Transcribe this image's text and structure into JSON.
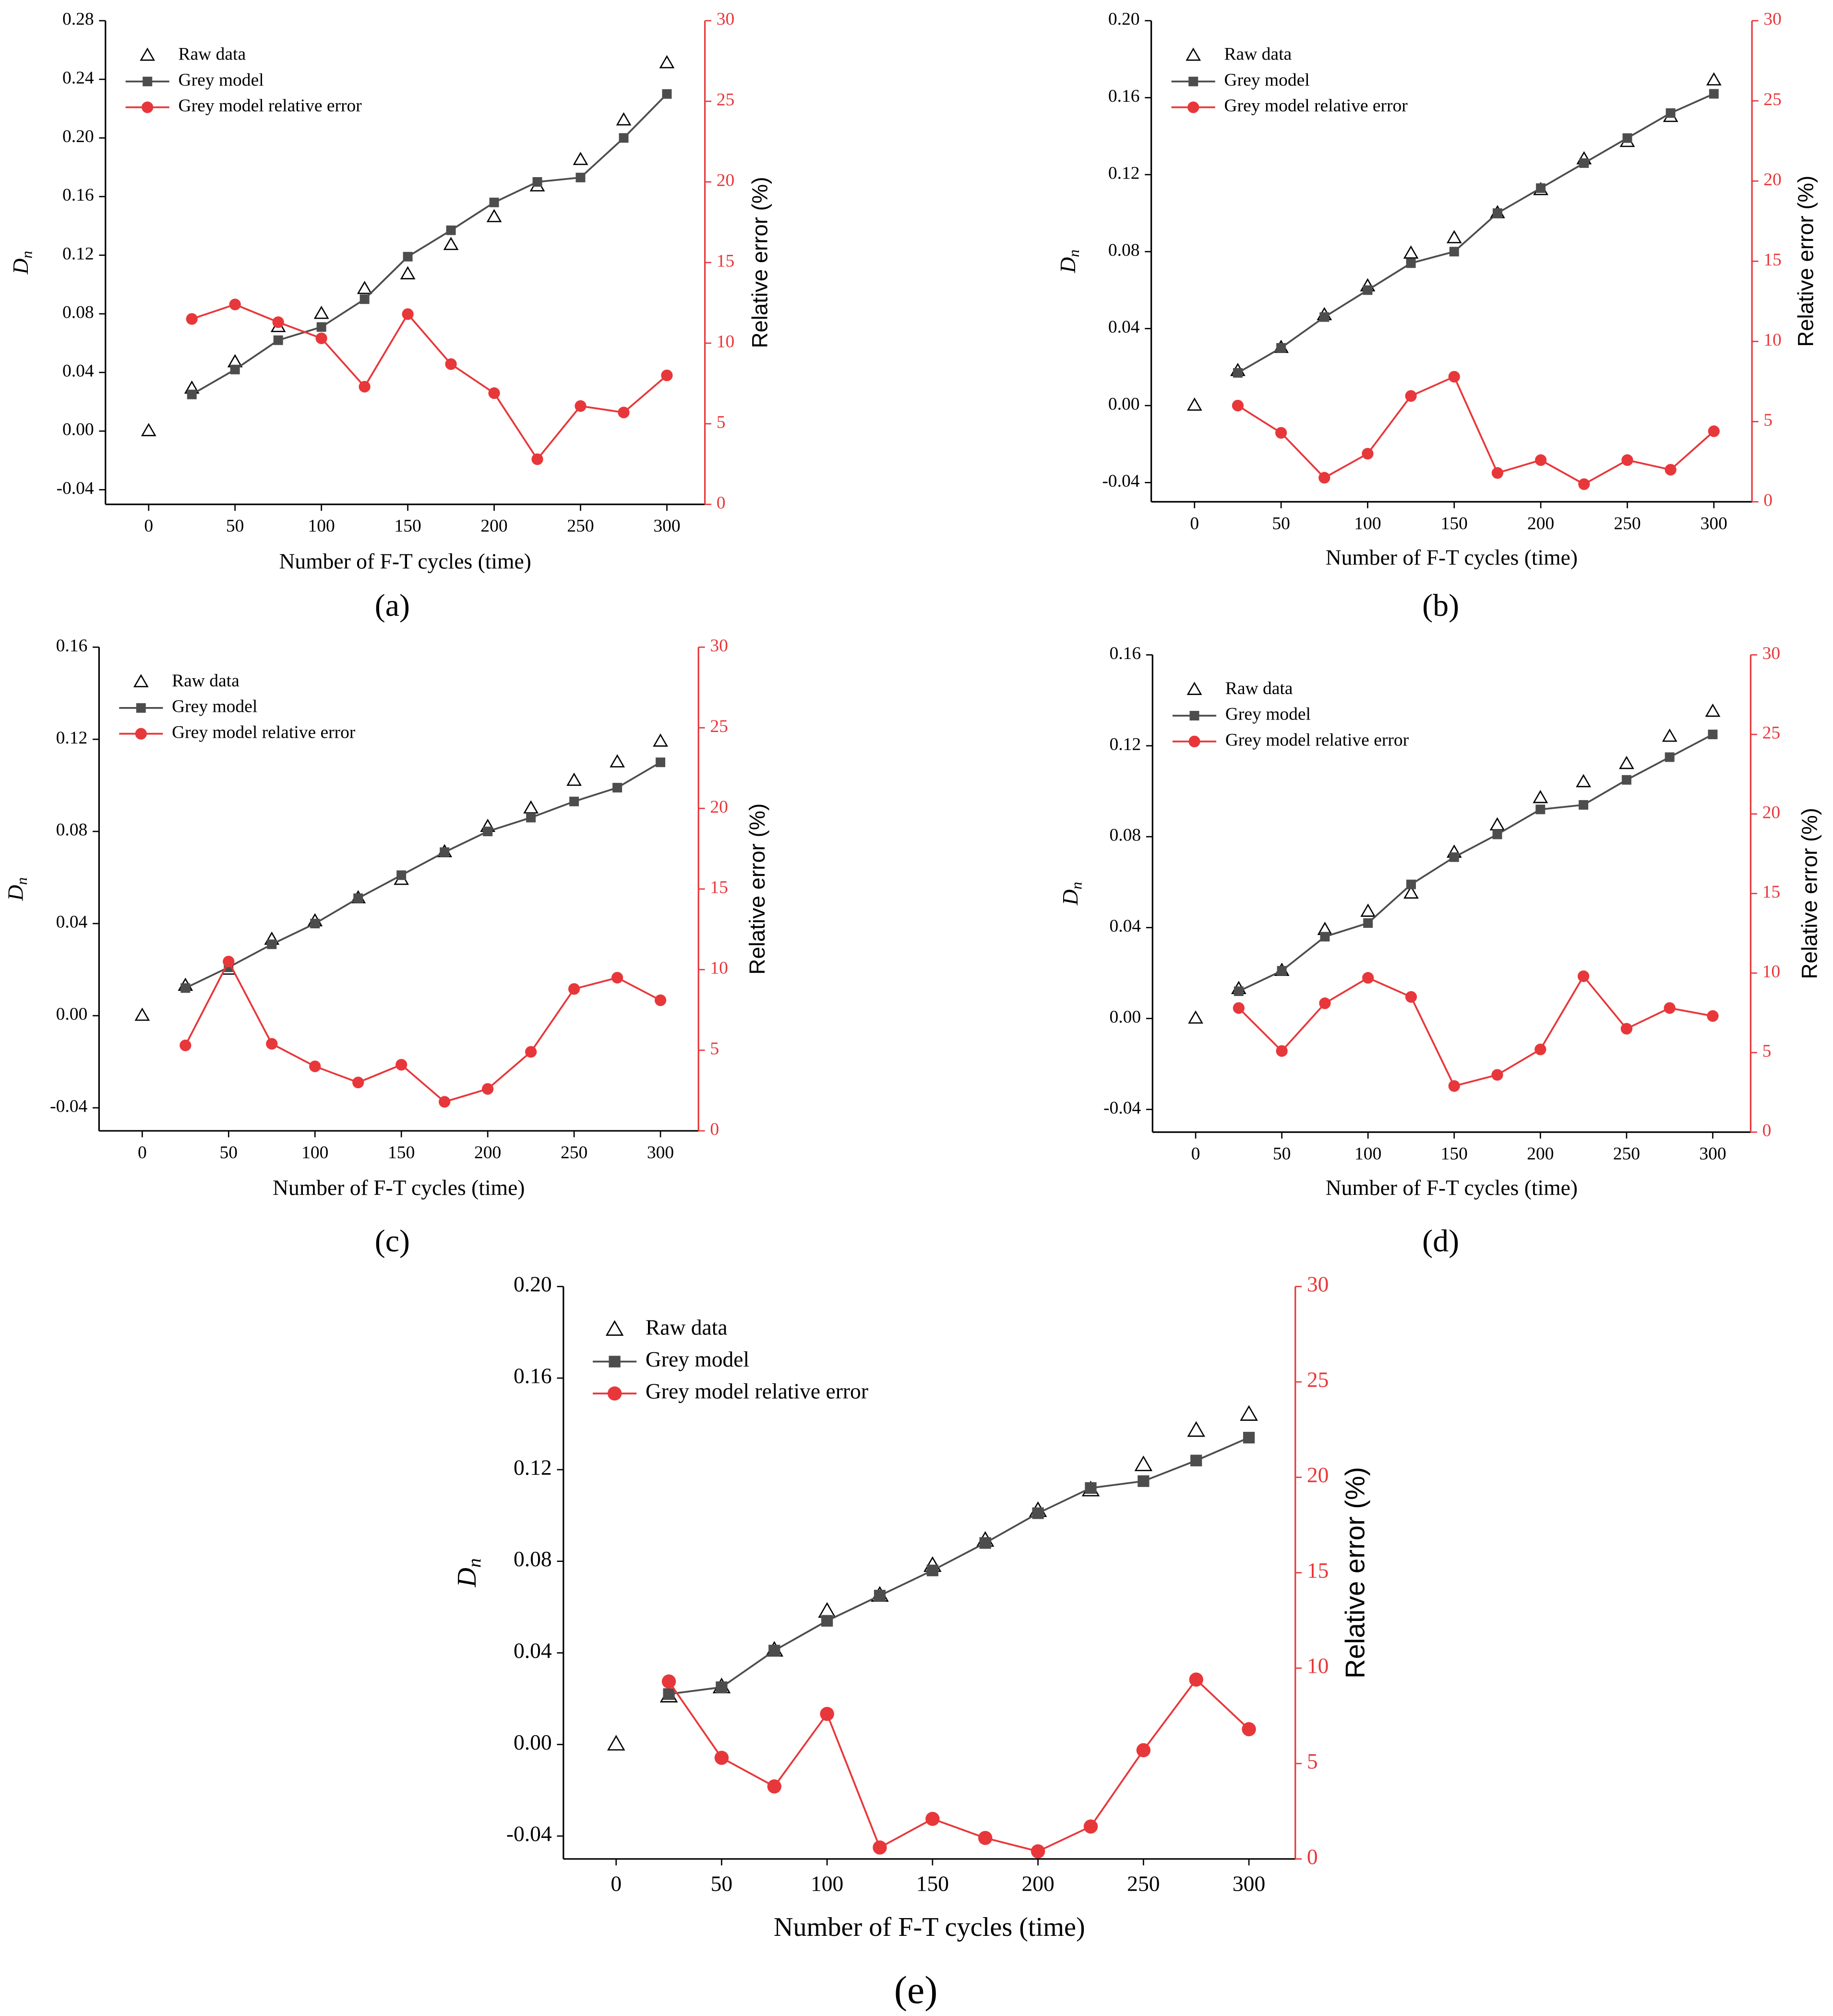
{
  "chart_data": [
    {
      "type": "line",
      "panel_label": "(a)",
      "xlabel": "Number of F-T cycles (time)",
      "ylabel": "D",
      "ylabel_subscript": "n",
      "y2label": "Relative error (%)",
      "x": [
        0,
        25,
        50,
        75,
        100,
        125,
        150,
        175,
        200,
        225,
        250,
        275,
        300
      ],
      "xlim": [
        -25,
        322
      ],
      "xticks": [
        0,
        50,
        100,
        150,
        200,
        250,
        300
      ],
      "ylim": [
        -0.05,
        0.28
      ],
      "yticks": [
        -0.04,
        {
          "value": 0,
          "label": "0.00"
        },
        0.04,
        0.08,
        0.12,
        0.16,
        {
          "value": 0.2,
          "label": "0.20"
        },
        0.24,
        0.28
      ],
      "y2lim": [
        0,
        30
      ],
      "y2ticks": [
        0,
        5,
        10,
        15,
        20,
        25,
        30
      ],
      "series": [
        {
          "name": "Raw data",
          "color": "#000000",
          "marker": "triangle",
          "line": false,
          "values": [
            0,
            0.029,
            0.047,
            0.071,
            0.08,
            0.097,
            0.107,
            0.127,
            0.146,
            0.167,
            0.185,
            0.212,
            0.251
          ]
        },
        {
          "name": "Grey model",
          "color": "#4d4d4d",
          "marker": "square",
          "line": true,
          "values": [
            null,
            0.025,
            0.042,
            0.062,
            0.071,
            0.09,
            0.119,
            0.137,
            0.156,
            0.17,
            0.173,
            0.2,
            0.23
          ]
        },
        {
          "name": "Grey model relative error",
          "color": "#e8373a",
          "marker": "circle",
          "line": true,
          "axis": "y2",
          "values": [
            null,
            11.5,
            12.4,
            11.3,
            10.3,
            7.3,
            11.8,
            8.7,
            6.9,
            2.8,
            6.1,
            5.7,
            8.0
          ]
        }
      ]
    },
    {
      "type": "line",
      "panel_label": "(b)",
      "xlabel": "Number of F-T cycles (time)",
      "ylabel": "D",
      "ylabel_subscript": "n",
      "y2label": "Relative error (%)",
      "x": [
        0,
        25,
        50,
        75,
        100,
        125,
        150,
        175,
        200,
        225,
        250,
        275,
        300
      ],
      "xlim": [
        -25,
        322
      ],
      "xticks": [
        0,
        50,
        100,
        150,
        200,
        250,
        300
      ],
      "ylim": [
        -0.05,
        0.2
      ],
      "yticks": [
        -0.04,
        {
          "value": 0,
          "label": "0.00"
        },
        0.04,
        0.08,
        0.12,
        0.16,
        {
          "value": 0.2,
          "label": "0.20"
        }
      ],
      "y2lim": [
        0,
        30
      ],
      "y2ticks": [
        0,
        5,
        10,
        15,
        20,
        25,
        30
      ],
      "series": [
        {
          "name": "Raw data",
          "color": "#000000",
          "marker": "triangle",
          "line": false,
          "values": [
            0,
            0.018,
            0.03,
            0.047,
            0.062,
            0.079,
            0.087,
            0.1,
            0.112,
            0.128,
            0.137,
            0.15,
            0.169
          ]
        },
        {
          "name": "Grey model",
          "color": "#4d4d4d",
          "marker": "square",
          "line": true,
          "values": [
            null,
            0.017,
            0.03,
            0.046,
            0.06,
            0.074,
            0.08,
            0.1,
            0.113,
            0.126,
            0.139,
            0.152,
            0.162
          ]
        },
        {
          "name": "Grey model relative error",
          "color": "#e8373a",
          "marker": "circle",
          "line": true,
          "axis": "y2",
          "values": [
            null,
            6.0,
            4.3,
            1.5,
            3.0,
            6.6,
            7.8,
            1.8,
            2.6,
            1.1,
            2.6,
            2.0,
            4.4
          ]
        }
      ]
    },
    {
      "type": "line",
      "panel_label": "(c)",
      "xlabel": "Number of F-T cycles (time)",
      "ylabel": "D",
      "ylabel_subscript": "n",
      "y2label": "Relative error (%)",
      "x": [
        0,
        25,
        50,
        75,
        100,
        125,
        150,
        175,
        200,
        225,
        250,
        275,
        300
      ],
      "xlim": [
        -25,
        322
      ],
      "xticks": [
        0,
        50,
        100,
        150,
        200,
        250,
        300
      ],
      "ylim": [
        -0.05,
        0.16
      ],
      "yticks": [
        -0.04,
        {
          "value": 0,
          "label": "0.00"
        },
        0.04,
        0.08,
        0.12,
        0.16
      ],
      "y2lim": [
        0,
        30
      ],
      "y2ticks": [
        0,
        5,
        10,
        15,
        20,
        25,
        30
      ],
      "series": [
        {
          "name": "Raw data",
          "color": "#000000",
          "marker": "triangle",
          "line": false,
          "values": [
            0,
            0.013,
            0.02,
            0.033,
            0.041,
            0.051,
            0.059,
            0.071,
            0.082,
            0.09,
            0.102,
            0.11,
            0.119
          ]
        },
        {
          "name": "Grey model",
          "color": "#4d4d4d",
          "marker": "square",
          "line": true,
          "values": [
            null,
            0.012,
            0.021,
            0.031,
            0.04,
            0.051,
            0.061,
            0.071,
            0.08,
            0.086,
            0.093,
            0.099,
            0.11
          ]
        },
        {
          "name": "Grey model relative error",
          "color": "#e8373a",
          "marker": "circle",
          "line": true,
          "axis": "y2",
          "values": [
            null,
            5.3,
            10.5,
            5.4,
            4.0,
            3.0,
            4.1,
            1.8,
            2.6,
            4.9,
            8.8,
            9.5,
            8.1
          ]
        }
      ]
    },
    {
      "type": "line",
      "panel_label": "(d)",
      "xlabel": "Number of F-T cycles (time)",
      "ylabel": "D",
      "ylabel_subscript": "n",
      "y2label": "Relative error (%)",
      "x": [
        0,
        25,
        50,
        75,
        100,
        125,
        150,
        175,
        200,
        225,
        250,
        275,
        300
      ],
      "xlim": [
        -25,
        322
      ],
      "xticks": [
        0,
        50,
        100,
        150,
        200,
        250,
        300
      ],
      "ylim": [
        -0.05,
        0.16
      ],
      "yticks": [
        -0.04,
        {
          "value": 0,
          "label": "0.00"
        },
        0.04,
        0.08,
        0.12,
        0.16
      ],
      "y2lim": [
        0,
        30
      ],
      "y2ticks": [
        0,
        5,
        10,
        15,
        20,
        25,
        30
      ],
      "series": [
        {
          "name": "Raw data",
          "color": "#000000",
          "marker": "triangle",
          "line": false,
          "values": [
            0,
            0.013,
            0.021,
            0.039,
            0.047,
            0.055,
            0.073,
            0.085,
            0.097,
            0.104,
            0.112,
            0.124,
            0.135
          ]
        },
        {
          "name": "Grey model",
          "color": "#4d4d4d",
          "marker": "square",
          "line": true,
          "values": [
            null,
            0.012,
            0.021,
            0.036,
            0.042,
            0.059,
            0.071,
            0.081,
            0.092,
            0.094,
            0.105,
            0.115,
            0.125
          ]
        },
        {
          "name": "Grey model relative error",
          "color": "#e8373a",
          "marker": "circle",
          "line": true,
          "axis": "y2",
          "values": [
            null,
            7.8,
            5.1,
            8.1,
            9.7,
            8.5,
            2.9,
            3.6,
            5.2,
            9.8,
            6.5,
            7.8,
            7.3
          ]
        }
      ]
    },
    {
      "type": "line",
      "panel_label": "(e)",
      "xlabel": "Number of F-T cycles (time)",
      "ylabel": "D",
      "ylabel_subscript": "n",
      "y2label": "Relative error (%)",
      "x": [
        0,
        25,
        50,
        75,
        100,
        125,
        150,
        175,
        200,
        225,
        250,
        275,
        300
      ],
      "xlim": [
        -25,
        322
      ],
      "xticks": [
        0,
        50,
        100,
        150,
        200,
        250,
        300
      ],
      "ylim": [
        -0.05,
        0.2
      ],
      "yticks": [
        -0.04,
        {
          "value": 0,
          "label": "0.00"
        },
        0.04,
        0.08,
        0.12,
        0.16,
        {
          "value": 0.2,
          "label": "0.20"
        }
      ],
      "y2lim": [
        0,
        30
      ],
      "y2ticks": [
        0,
        5,
        10,
        15,
        20,
        25,
        30
      ],
      "series": [
        {
          "name": "Raw data",
          "color": "#000000",
          "marker": "triangle",
          "line": false,
          "values": [
            0,
            0.021,
            0.025,
            0.041,
            0.058,
            0.065,
            0.078,
            0.089,
            0.102,
            0.111,
            0.122,
            0.137,
            0.144
          ]
        },
        {
          "name": "Grey model",
          "color": "#4d4d4d",
          "marker": "square",
          "line": true,
          "values": [
            null,
            0.022,
            0.025,
            0.041,
            0.054,
            0.065,
            0.076,
            0.088,
            0.101,
            0.112,
            0.115,
            0.124,
            0.134
          ]
        },
        {
          "name": "Grey model relative error",
          "color": "#e8373a",
          "marker": "circle",
          "line": true,
          "axis": "y2",
          "values": [
            null,
            9.3,
            5.3,
            3.8,
            7.6,
            0.6,
            2.1,
            1.1,
            0.4,
            1.7,
            5.7,
            9.4,
            6.8
          ]
        }
      ]
    }
  ]
}
